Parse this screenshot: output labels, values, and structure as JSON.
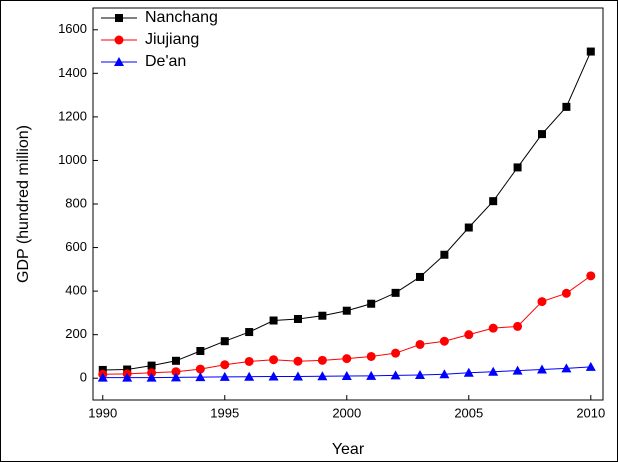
{
  "chart_data": {
    "type": "line",
    "x_label": "Year",
    "y_label": "GDP (hundred million)",
    "x": [
      1990,
      1991,
      1992,
      1993,
      1994,
      1995,
      1996,
      1997,
      1998,
      1999,
      2000,
      2001,
      2002,
      2003,
      2004,
      2005,
      2006,
      2007,
      2008,
      2009,
      2010
    ],
    "series": [
      {
        "name": "Nanchang",
        "color": "#000000",
        "marker": "square",
        "values": [
          38,
          40,
          58,
          80,
          125,
          170,
          212,
          265,
          272,
          287,
          310,
          342,
          392,
          465,
          567,
          692,
          813,
          968,
          1121,
          1246,
          1500
        ]
      },
      {
        "name": "Jiujiang",
        "color": "#ff0000",
        "marker": "circle",
        "values": [
          18,
          20,
          25,
          30,
          42,
          62,
          77,
          85,
          78,
          82,
          90,
          100,
          115,
          155,
          170,
          200,
          230,
          238,
          352,
          390,
          470
        ]
      },
      {
        "name": "De'an",
        "color": "#0000ff",
        "marker": "triangle",
        "values": [
          3,
          3,
          3,
          4,
          5,
          6,
          7,
          8,
          8,
          9,
          10,
          11,
          13,
          15,
          18,
          25,
          30,
          35,
          40,
          45,
          52
        ]
      }
    ],
    "xlim": [
      1989.6,
      2010.5
    ],
    "xticks": [
      1990,
      1995,
      2000,
      2005,
      2010
    ],
    "ylim": [
      -100,
      1700
    ],
    "yticks": [
      0,
      200,
      400,
      600,
      800,
      1000,
      1200,
      1400,
      1600
    ],
    "legend": "upper-left"
  }
}
